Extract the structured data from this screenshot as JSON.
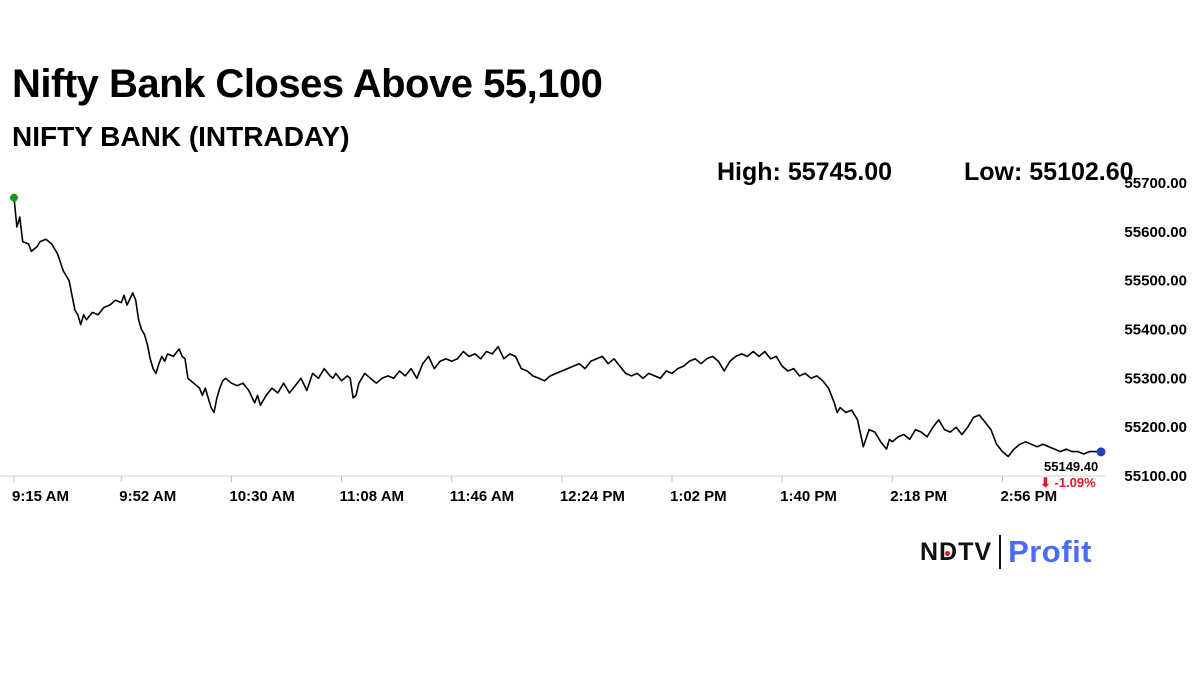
{
  "headline": "Nifty Bank Closes Above 55,100",
  "subheadline": "NIFTY BANK (INTRADAY)",
  "stats": {
    "high_text": "High: 55745.00",
    "low_text": "Low: 55102.60"
  },
  "brand": {
    "ndtv": "NDTV",
    "profit": "Profit",
    "ndtv_color": "#111111",
    "profit_color": "#4a6cf7",
    "dot_color": "#e01b22"
  },
  "chart_data": {
    "type": "line",
    "title": "",
    "xlabel": "",
    "ylabel": "",
    "ylim": [
      55100,
      55700
    ],
    "y_ticks": [
      "55700.00",
      "55600.00",
      "55500.00",
      "55400.00",
      "55300.00",
      "55200.00",
      "55100.00"
    ],
    "y_tick_values": [
      55700,
      55600,
      55500,
      55400,
      55300,
      55200,
      55100
    ],
    "x_ticks": [
      "9:15 AM",
      "9:52 AM",
      "10:30 AM",
      "11:08 AM",
      "11:46 AM",
      "12:24 PM",
      "1:02 PM",
      "1:40 PM",
      "2:18 PM",
      "2:56 PM"
    ],
    "x_tick_minutes": [
      555,
      592,
      630,
      668,
      706,
      744,
      782,
      820,
      858,
      896
    ],
    "xlim_minutes": [
      555,
      930
    ],
    "grid": false,
    "line_color": "#000000",
    "start_marker_color": "#1a9a1a",
    "end_marker_color": "#1f3fbf",
    "last_value_text": "55149.40",
    "change_text": "⬇ -1.09%",
    "change_color": "#e01b22",
    "series": [
      {
        "values": [
          [
            555,
            55670
          ],
          [
            556,
            55610
          ],
          [
            557,
            55630
          ],
          [
            558,
            55580
          ],
          [
            560,
            55575
          ],
          [
            561,
            55560
          ],
          [
            563,
            55570
          ],
          [
            564,
            55580
          ],
          [
            566,
            55585
          ],
          [
            568,
            55575
          ],
          [
            570,
            55555
          ],
          [
            572,
            55520
          ],
          [
            574,
            55500
          ],
          [
            575,
            55470
          ],
          [
            576,
            55440
          ],
          [
            577,
            55430
          ],
          [
            578,
            55410
          ],
          [
            579,
            55430
          ],
          [
            580,
            55420
          ],
          [
            582,
            55435
          ],
          [
            584,
            55430
          ],
          [
            586,
            55445
          ],
          [
            588,
            55450
          ],
          [
            590,
            55460
          ],
          [
            592,
            55455
          ],
          [
            593,
            55470
          ],
          [
            594,
            55450
          ],
          [
            596,
            55475
          ],
          [
            597,
            55460
          ],
          [
            598,
            55420
          ],
          [
            599,
            55400
          ],
          [
            600,
            55390
          ],
          [
            601,
            55370
          ],
          [
            602,
            55340
          ],
          [
            603,
            55320
          ],
          [
            604,
            55310
          ],
          [
            605,
            55330
          ],
          [
            606,
            55345
          ],
          [
            607,
            55335
          ],
          [
            608,
            55350
          ],
          [
            610,
            55345
          ],
          [
            612,
            55360
          ],
          [
            613,
            55345
          ],
          [
            614,
            55340
          ],
          [
            615,
            55300
          ],
          [
            617,
            55290
          ],
          [
            619,
            55280
          ],
          [
            620,
            55265
          ],
          [
            621,
            55280
          ],
          [
            622,
            55260
          ],
          [
            623,
            55240
          ],
          [
            624,
            55230
          ],
          [
            625,
            55260
          ],
          [
            626,
            55280
          ],
          [
            627,
            55295
          ],
          [
            628,
            55300
          ],
          [
            630,
            55290
          ],
          [
            632,
            55285
          ],
          [
            634,
            55290
          ],
          [
            636,
            55275
          ],
          [
            638,
            55250
          ],
          [
            639,
            55265
          ],
          [
            640,
            55245
          ],
          [
            642,
            55265
          ],
          [
            644,
            55280
          ],
          [
            646,
            55270
          ],
          [
            648,
            55290
          ],
          [
            650,
            55270
          ],
          [
            652,
            55285
          ],
          [
            654,
            55300
          ],
          [
            656,
            55275
          ],
          [
            658,
            55310
          ],
          [
            660,
            55300
          ],
          [
            662,
            55320
          ],
          [
            664,
            55305
          ],
          [
            665,
            55300
          ],
          [
            666,
            55310
          ],
          [
            668,
            55295
          ],
          [
            670,
            55305
          ],
          [
            671,
            55300
          ],
          [
            672,
            55260
          ],
          [
            673,
            55265
          ],
          [
            674,
            55290
          ],
          [
            676,
            55310
          ],
          [
            678,
            55300
          ],
          [
            680,
            55290
          ],
          [
            682,
            55300
          ],
          [
            684,
            55305
          ],
          [
            686,
            55300
          ],
          [
            688,
            55315
          ],
          [
            690,
            55305
          ],
          [
            692,
            55320
          ],
          [
            694,
            55300
          ],
          [
            696,
            55330
          ],
          [
            698,
            55345
          ],
          [
            700,
            55320
          ],
          [
            702,
            55335
          ],
          [
            704,
            55340
          ],
          [
            706,
            55335
          ],
          [
            708,
            55340
          ],
          [
            710,
            55355
          ],
          [
            712,
            55345
          ],
          [
            714,
            55350
          ],
          [
            716,
            55340
          ],
          [
            718,
            55355
          ],
          [
            720,
            55350
          ],
          [
            722,
            55365
          ],
          [
            724,
            55340
          ],
          [
            726,
            55350
          ],
          [
            728,
            55345
          ],
          [
            730,
            55320
          ],
          [
            732,
            55315
          ],
          [
            734,
            55305
          ],
          [
            736,
            55300
          ],
          [
            738,
            55295
          ],
          [
            740,
            55305
          ],
          [
            742,
            55310
          ],
          [
            744,
            55315
          ],
          [
            746,
            55320
          ],
          [
            748,
            55325
          ],
          [
            750,
            55330
          ],
          [
            752,
            55320
          ],
          [
            754,
            55335
          ],
          [
            756,
            55340
          ],
          [
            758,
            55345
          ],
          [
            760,
            55330
          ],
          [
            762,
            55340
          ],
          [
            764,
            55325
          ],
          [
            766,
            55310
          ],
          [
            768,
            55305
          ],
          [
            770,
            55310
          ],
          [
            772,
            55300
          ],
          [
            774,
            55310
          ],
          [
            776,
            55305
          ],
          [
            778,
            55300
          ],
          [
            780,
            55315
          ],
          [
            782,
            55310
          ],
          [
            784,
            55320
          ],
          [
            786,
            55325
          ],
          [
            788,
            55335
          ],
          [
            790,
            55340
          ],
          [
            792,
            55330
          ],
          [
            794,
            55340
          ],
          [
            796,
            55345
          ],
          [
            798,
            55335
          ],
          [
            800,
            55315
          ],
          [
            802,
            55335
          ],
          [
            804,
            55345
          ],
          [
            806,
            55350
          ],
          [
            808,
            55345
          ],
          [
            810,
            55355
          ],
          [
            812,
            55345
          ],
          [
            814,
            55355
          ],
          [
            816,
            55340
          ],
          [
            818,
            55345
          ],
          [
            820,
            55325
          ],
          [
            822,
            55315
          ],
          [
            824,
            55320
          ],
          [
            826,
            55305
          ],
          [
            828,
            55310
          ],
          [
            830,
            55300
          ],
          [
            832,
            55305
          ],
          [
            834,
            55295
          ],
          [
            836,
            55280
          ],
          [
            838,
            55250
          ],
          [
            839,
            55230
          ],
          [
            840,
            55240
          ],
          [
            842,
            55230
          ],
          [
            844,
            55235
          ],
          [
            846,
            55215
          ],
          [
            848,
            55160
          ],
          [
            850,
            55195
          ],
          [
            852,
            55190
          ],
          [
            854,
            55170
          ],
          [
            856,
            55155
          ],
          [
            857,
            55175
          ],
          [
            858,
            55170
          ],
          [
            860,
            55180
          ],
          [
            862,
            55185
          ],
          [
            864,
            55175
          ],
          [
            866,
            55195
          ],
          [
            868,
            55190
          ],
          [
            870,
            55180
          ],
          [
            872,
            55200
          ],
          [
            874,
            55215
          ],
          [
            876,
            55195
          ],
          [
            878,
            55190
          ],
          [
            880,
            55200
          ],
          [
            882,
            55185
          ],
          [
            884,
            55200
          ],
          [
            886,
            55220
          ],
          [
            888,
            55225
          ],
          [
            890,
            55210
          ],
          [
            892,
            55195
          ],
          [
            894,
            55165
          ],
          [
            896,
            55150
          ],
          [
            898,
            55140
          ],
          [
            900,
            55155
          ],
          [
            902,
            55165
          ],
          [
            904,
            55170
          ],
          [
            906,
            55165
          ],
          [
            908,
            55160
          ],
          [
            910,
            55165
          ],
          [
            912,
            55160
          ],
          [
            914,
            55155
          ],
          [
            916,
            55150
          ],
          [
            918,
            55155
          ],
          [
            920,
            55150
          ],
          [
            922,
            55150
          ],
          [
            924,
            55145
          ],
          [
            926,
            55150
          ],
          [
            928,
            55150
          ],
          [
            930,
            55149.4
          ]
        ]
      }
    ]
  }
}
